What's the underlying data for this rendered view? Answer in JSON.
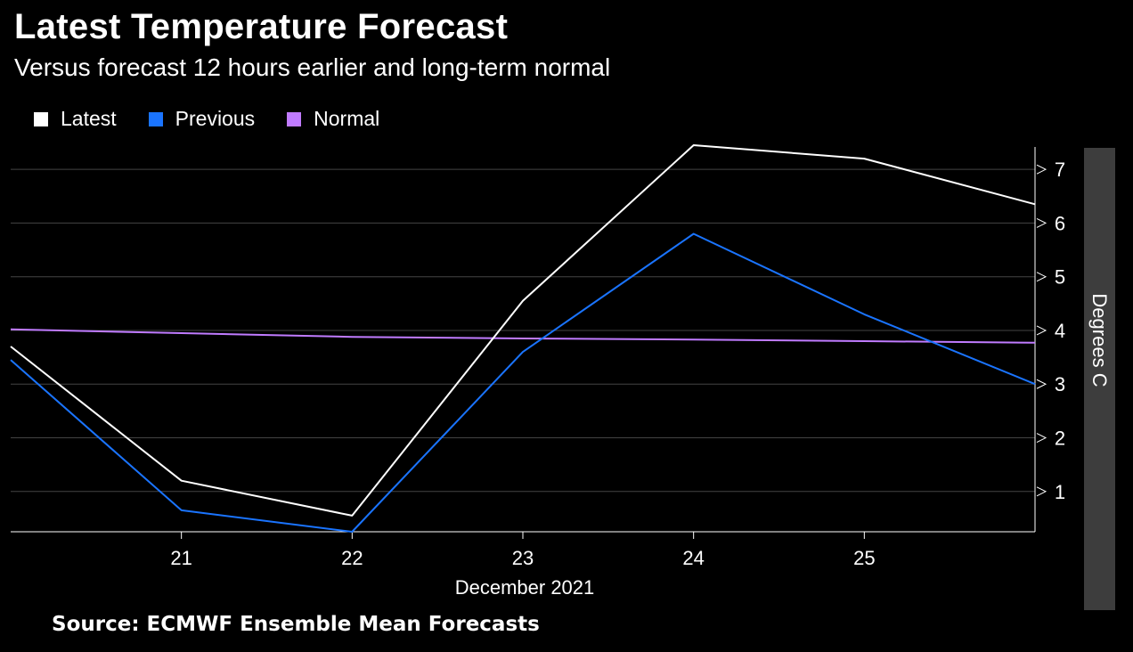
{
  "title": "Latest Temperature Forecast",
  "subtitle": "Versus forecast 12 hours earlier and long-term normal",
  "source": "Source: ECMWF Ensemble Mean Forecasts",
  "legend": [
    {
      "label": "Latest",
      "color": "#ffffff"
    },
    {
      "label": "Previous",
      "color": "#1a74ff"
    },
    {
      "label": "Normal",
      "color": "#c07bff"
    }
  ],
  "chart_data": {
    "type": "line",
    "title": "Latest Temperature Forecast",
    "xlabel": "December 2021",
    "ylabel": "Degrees C",
    "x": [
      20.0,
      21.0,
      22.0,
      23.0,
      24.0,
      25.0,
      26.0
    ],
    "xlim": [
      20.0,
      26.0
    ],
    "ylim": [
      0.25,
      7.5
    ],
    "x_ticks": [
      21,
      22,
      23,
      24,
      25
    ],
    "y_ticks": [
      1,
      2,
      3,
      4,
      5,
      6,
      7
    ],
    "grid": true,
    "series": [
      {
        "name": "Latest",
        "color": "#ffffff",
        "values": [
          3.7,
          1.2,
          0.55,
          4.55,
          7.45,
          7.2,
          6.35
        ]
      },
      {
        "name": "Previous",
        "color": "#1a74ff",
        "values": [
          3.45,
          0.65,
          0.25,
          3.6,
          5.8,
          4.3,
          3.0
        ]
      },
      {
        "name": "Normal",
        "color": "#c07bff",
        "values": [
          4.02,
          3.95,
          3.88,
          3.85,
          3.83,
          3.8,
          3.77
        ]
      }
    ]
  }
}
